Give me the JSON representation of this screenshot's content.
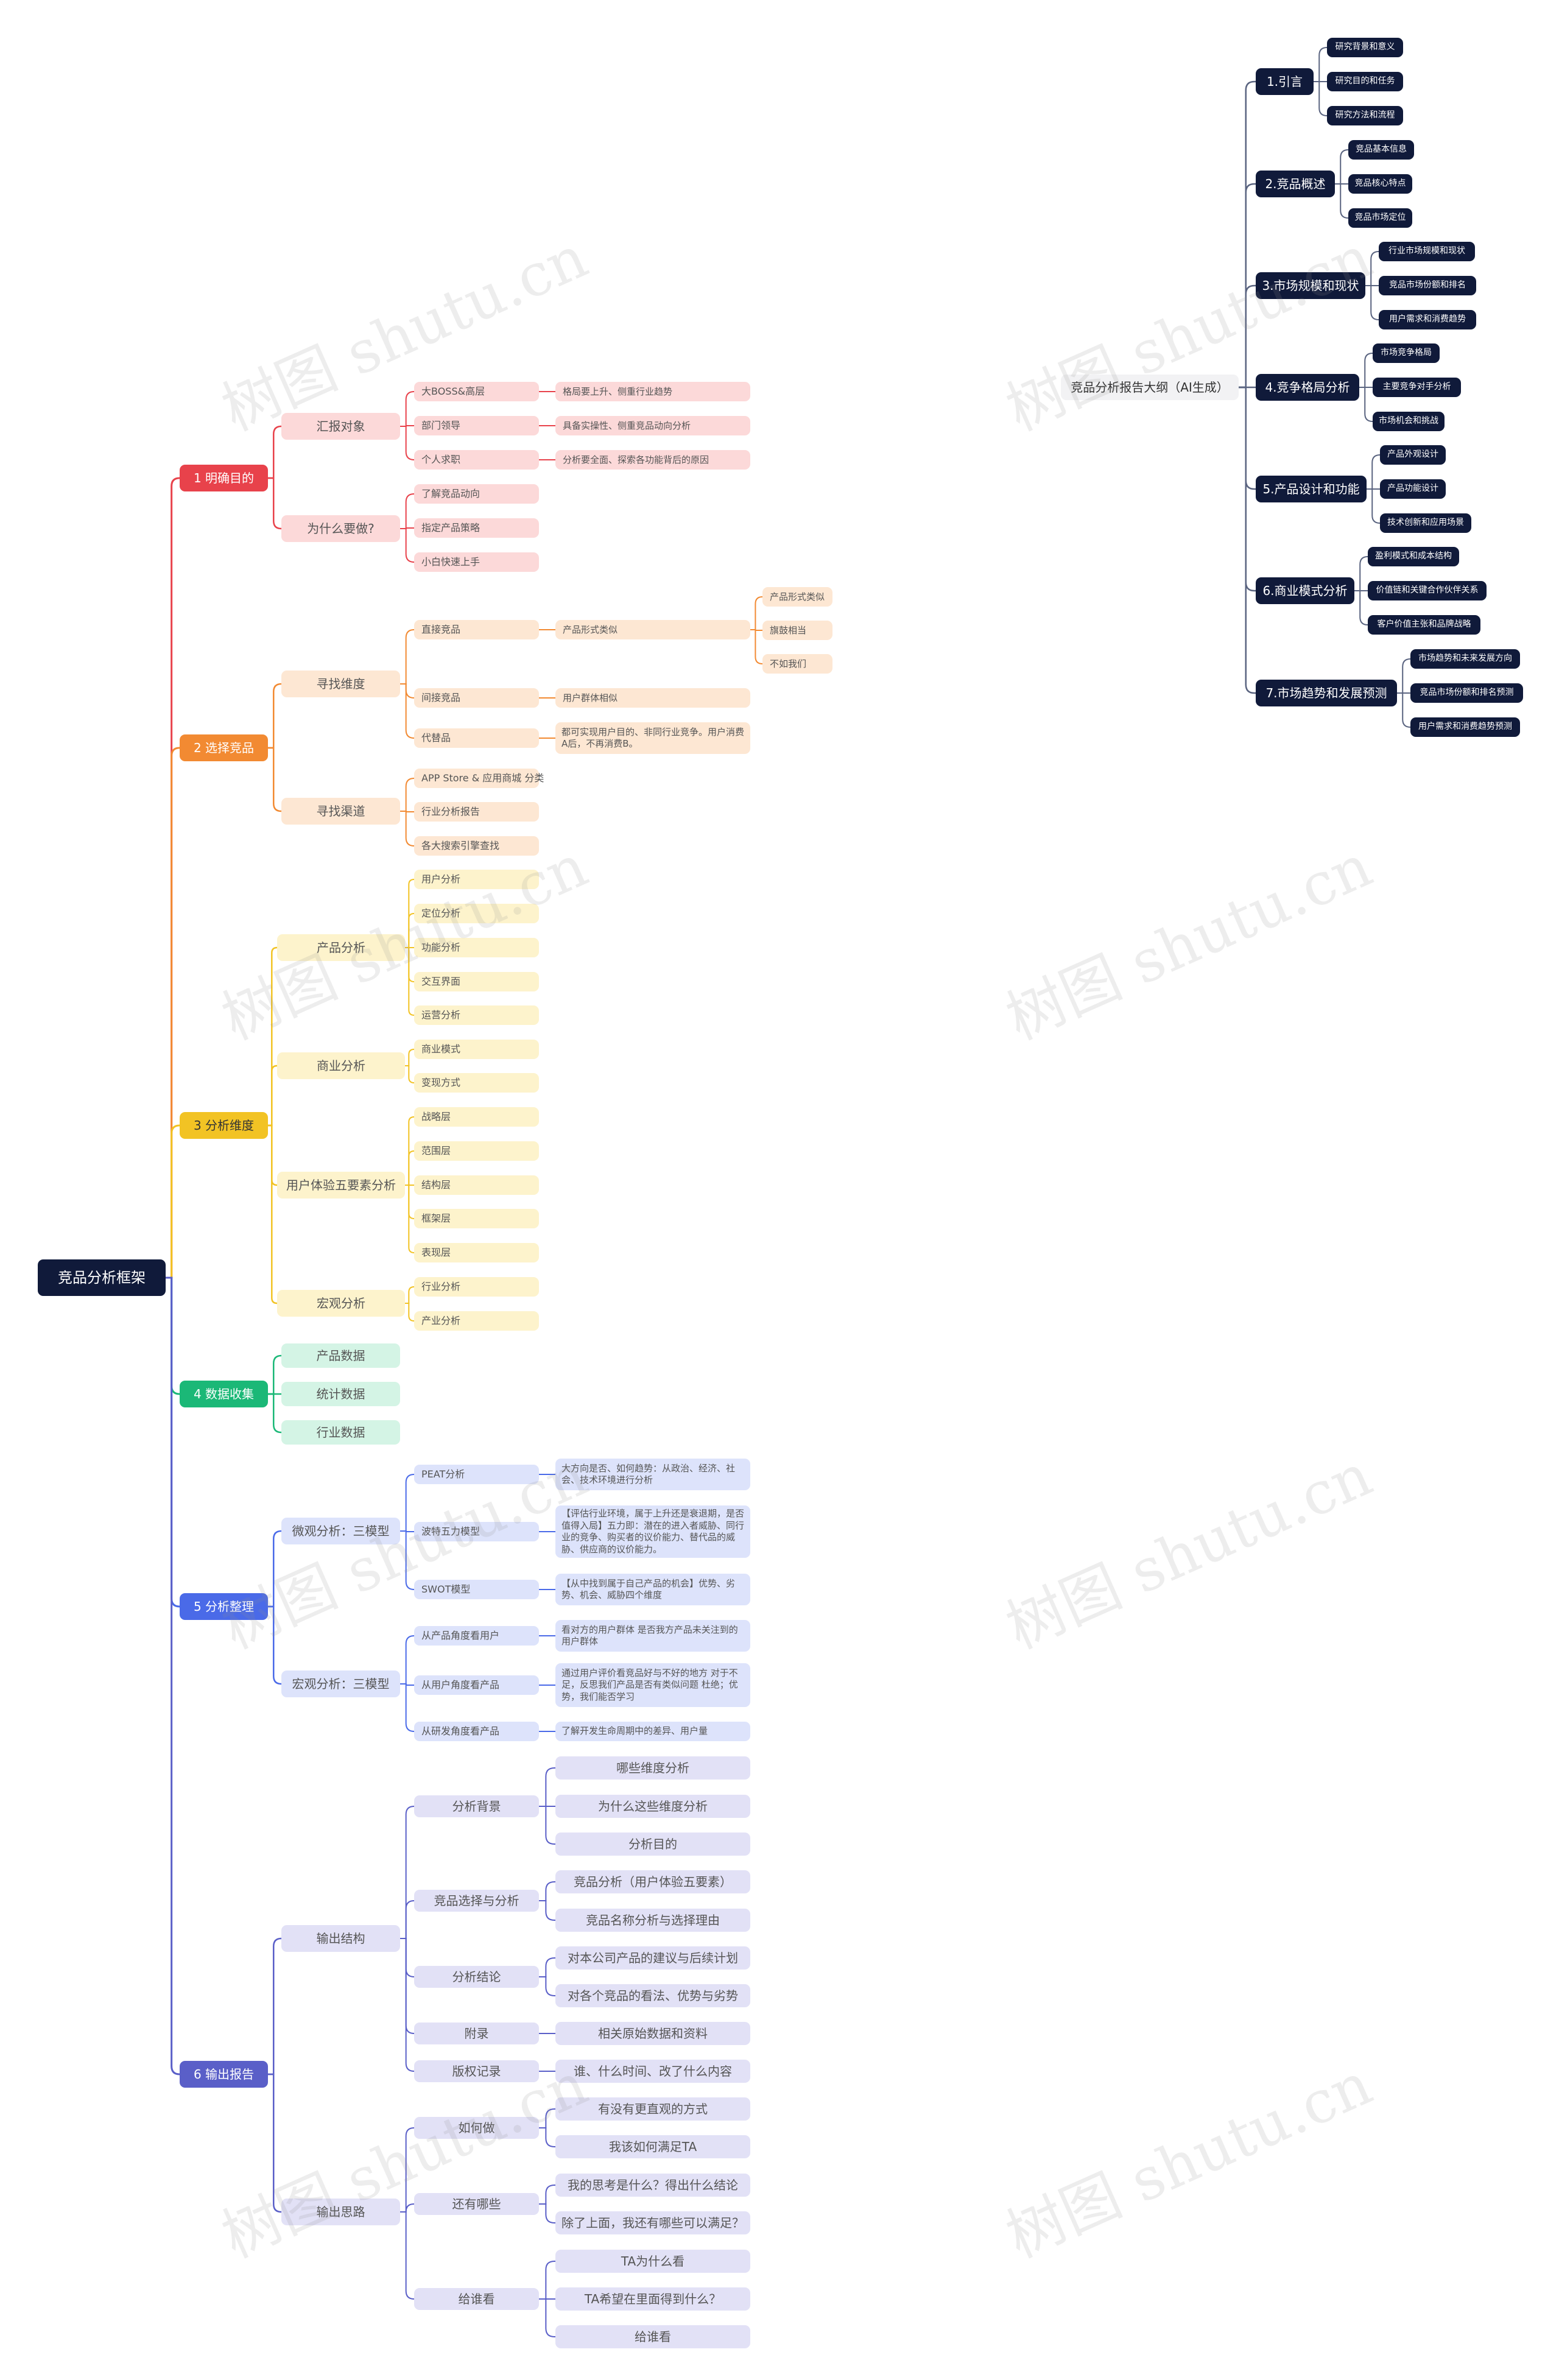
{
  "root": "竞品分析框架",
  "watermark": "树图 shutu.cn",
  "colors": {
    "root": "#101a3a",
    "b1": "#e8424b",
    "b2": "#f28a32",
    "b3": "#f2c324",
    "b4": "#1bb877",
    "b5": "#4a6ae8",
    "b6": "#5a5fc8",
    "right": "#101a3a"
  },
  "b1": {
    "label": "1 明确目的",
    "c1": {
      "label": "汇报对象",
      "items": [
        {
          "label": "大BOSS&高层",
          "note": "格局要上升、侧重行业趋势"
        },
        {
          "label": "部门领导",
          "note": "具备实操性、侧重竞品动向分析"
        },
        {
          "label": "个人求职",
          "note": "分析要全面、探索各功能背后的原因"
        }
      ]
    },
    "c2": {
      "label": "为什么要做?",
      "items": [
        "了解竞品动向",
        "指定产品策略",
        "小白快速上手"
      ]
    }
  },
  "b2": {
    "label": "2 选择竞品",
    "c1": {
      "label": "寻找维度",
      "direct": "直接竞品",
      "direct_note": "产品形式类似",
      "direct_subs": [
        "产品形式类似",
        "旗鼓相当",
        "不如我们"
      ],
      "indirect": "间接竞品",
      "indirect_note": "用户群体相似",
      "sub": "代替品",
      "sub_note": "都可实现用户目的、非同行业竞争。用户消费A后，不再消费B。"
    },
    "c2": {
      "label": "寻找渠道",
      "items": [
        "APP Store & 应用商城 分类",
        "行业分析报告",
        "各大搜索引擎查找"
      ]
    }
  },
  "b3": {
    "label": "3 分析维度",
    "c1": {
      "label": "产品分析",
      "items": [
        "用户分析",
        "定位分析",
        "功能分析",
        "交互界面",
        "运营分析"
      ]
    },
    "c2": {
      "label": "商业分析",
      "items": [
        "商业模式",
        "变现方式"
      ]
    },
    "c3": {
      "label": "用户体验五要素分析",
      "items": [
        "战略层",
        "范围层",
        "结构层",
        "框架层",
        "表现层"
      ]
    },
    "c4": {
      "label": "宏观分析",
      "items": [
        "行业分析",
        "产业分析"
      ]
    }
  },
  "b4": {
    "label": "4 数据收集",
    "items": [
      "产品数据",
      "统计数据",
      "行业数据"
    ]
  },
  "b5": {
    "label": "5 分析整理",
    "c1": {
      "label": "微观分析：三模型",
      "items": [
        {
          "label": "PEAT分析",
          "note": "大方向是否、如何趋势：从政治、经济、社会、技术环境进行分析"
        },
        {
          "label": "波特五力模型",
          "note": "【评估行业环境，属于上升还是衰退期，是否值得入局】五力即：潜在的进入者威胁、同行业的竞争、购买者的议价能力、替代品的威胁、供应商的议价能力。"
        },
        {
          "label": "SWOT模型",
          "note": "【从中找到属于自己产品的机会】优势、劣势、机会、威胁四个维度"
        }
      ]
    },
    "c2": {
      "label": "宏观分析：三模型",
      "items": [
        {
          "label": "从产品角度看用户",
          "note": "看对方的用户群体 是否我方产品未关注到的用户群体"
        },
        {
          "label": "从用户角度看产品",
          "note": "通过用户评价看竞品好与不好的地方 对于不足，反思我们产品是否有类似问题 杜绝；优势，我们能否学习"
        },
        {
          "label": "从研发角度看产品",
          "note": "了解开发生命周期中的差异、用户量"
        }
      ]
    }
  },
  "b6": {
    "label": "6 输出报告",
    "c1": {
      "label": "输出结构",
      "groups": [
        {
          "label": "分析背景",
          "items": [
            "哪些维度分析",
            "为什么这些维度分析",
            "分析目的"
          ]
        },
        {
          "label": "竞品选择与分析",
          "items": [
            "竞品分析（用户体验五要素）",
            "竞品名称分析与选择理由"
          ]
        },
        {
          "label": "分析结论",
          "items": [
            "对本公司产品的建议与后续计划",
            "对各个竞品的看法、优势与劣势"
          ]
        },
        {
          "label": "附录",
          "items": [
            "相关原始数据和资料"
          ]
        },
        {
          "label": "版权记录",
          "items": [
            "谁、什么时间、改了什么内容"
          ]
        }
      ]
    },
    "c2": {
      "label": "输出思路",
      "groups": [
        {
          "label": "如何做",
          "items": [
            "有没有更直观的方式",
            "我该如何满足TA"
          ]
        },
        {
          "label": "还有哪些",
          "items": [
            "我的思考是什么？得出什么结论",
            "除了上面，我还有哪些可以满足？"
          ]
        },
        {
          "label": "给谁看",
          "items": [
            "TA为什么看",
            "TA希望在里面得到什么？",
            "给谁看"
          ]
        }
      ]
    }
  },
  "right": {
    "root": "竞品分析报告大纲（AI生成）",
    "sections": [
      {
        "label": "1.引言",
        "items": [
          "研究背景和意义",
          "研究目的和任务",
          "研究方法和流程"
        ]
      },
      {
        "label": "2.竞品概述",
        "items": [
          "竞品基本信息",
          "竞品核心特点",
          "竞品市场定位"
        ]
      },
      {
        "label": "3.市场规模和现状",
        "items": [
          "行业市场规模和现状",
          "竞品市场份额和排名",
          "用户需求和消费趋势"
        ]
      },
      {
        "label": "4.竞争格局分析",
        "items": [
          "市场竞争格局",
          "主要竞争对手分析",
          "市场机会和挑战"
        ]
      },
      {
        "label": "5.产品设计和功能",
        "items": [
          "产品外观设计",
          "产品功能设计",
          "技术创新和应用场景"
        ]
      },
      {
        "label": "6.商业模式分析",
        "items": [
          "盈利模式和成本结构",
          "价值链和关键合作伙伴关系",
          "客户价值主张和品牌战略"
        ]
      },
      {
        "label": "7.市场趋势和发展预测",
        "items": [
          "市场趋势和未来发展方向",
          "竞品市场份额和排名预测",
          "用户需求和消费趋势预测"
        ]
      }
    ]
  }
}
